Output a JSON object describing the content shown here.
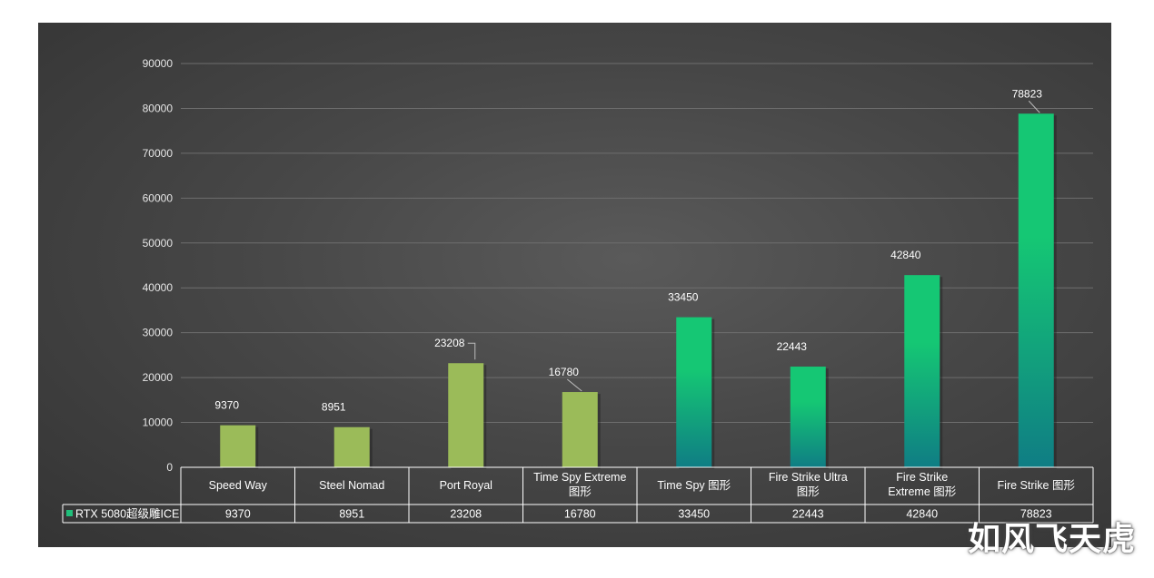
{
  "chart_data": {
    "type": "bar",
    "categories": [
      "Speed Way",
      "Steel Nomad",
      "Port Royal",
      "Time Spy Extreme 图形",
      "Time Spy  图形",
      "Fire Strike Ultra 图形",
      "Fire Strike Extreme 图形",
      "Fire Strike 图形"
    ],
    "series": [
      {
        "name": "RTX 5080超级雕ICE",
        "values": [
          9370,
          8951,
          23208,
          16780,
          33450,
          22443,
          42840,
          78823
        ]
      }
    ],
    "ylim": [
      0,
      90000
    ],
    "yticks": [
      0,
      10000,
      20000,
      30000,
      40000,
      50000,
      60000,
      70000,
      80000,
      90000
    ],
    "grid": true,
    "legend": "data-table",
    "colors": {
      "olive_bars": "#9bbb59",
      "gradient_top": "#15c774",
      "gradient_bottom": "#0f7d84",
      "legend_key": "#1fbf7a"
    }
  },
  "watermark": "如风飞天虎"
}
